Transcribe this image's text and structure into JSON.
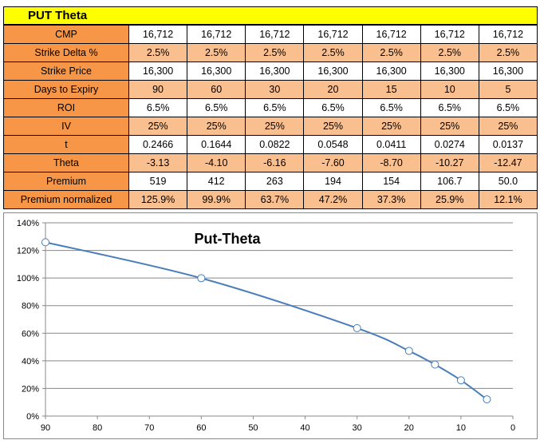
{
  "sheet": {
    "title": "PUT Theta",
    "rows": [
      {
        "label": "CMP",
        "values": [
          "16,712",
          "16,712",
          "16,712",
          "16,712",
          "16,712",
          "16,712",
          "16,712"
        ]
      },
      {
        "label": "Strike Delta %",
        "values": [
          "2.5%",
          "2.5%",
          "2.5%",
          "2.5%",
          "2.5%",
          "2.5%",
          "2.5%"
        ]
      },
      {
        "label": "Strike Price",
        "values": [
          "16,300",
          "16,300",
          "16,300",
          "16,300",
          "16,300",
          "16,300",
          "16,300"
        ]
      },
      {
        "label": "Days to Expiry",
        "values": [
          "90",
          "60",
          "30",
          "20",
          "15",
          "10",
          "5"
        ]
      },
      {
        "label": "ROI",
        "values": [
          "6.5%",
          "6.5%",
          "6.5%",
          "6.5%",
          "6.5%",
          "6.5%",
          "6.5%"
        ]
      },
      {
        "label": "IV",
        "values": [
          "25%",
          "25%",
          "25%",
          "25%",
          "25%",
          "25%",
          "25%"
        ]
      },
      {
        "label": "t",
        "values": [
          "0.2466",
          "0.1644",
          "0.0822",
          "0.0548",
          "0.0411",
          "0.0274",
          "0.0137"
        ]
      },
      {
        "label": "Theta",
        "values": [
          "-3.13",
          "-4.10",
          "-6.16",
          "-7.60",
          "-8.70",
          "-10.27",
          "-12.47"
        ]
      },
      {
        "label": "Premium",
        "values": [
          "519",
          "412",
          "263",
          "194",
          "154",
          "106.7",
          "50.0"
        ]
      },
      {
        "label": "Premium normalized",
        "values": [
          "125.9%",
          "99.9%",
          "63.7%",
          "47.2%",
          "37.3%",
          "25.9%",
          "12.1%"
        ]
      }
    ]
  },
  "chart_data": {
    "type": "line",
    "title": "Put-Theta",
    "xlabel": "",
    "ylabel": "",
    "x": [
      90,
      60,
      30,
      20,
      15,
      10,
      5
    ],
    "series": [
      {
        "values": [
          125.9,
          99.9,
          63.7,
          47.2,
          37.3,
          25.9,
          12.1
        ]
      }
    ],
    "xlim": [
      90,
      0
    ],
    "x_reversed": true,
    "xticks": [
      90,
      80,
      70,
      60,
      50,
      40,
      30,
      20,
      10,
      0
    ],
    "xtick_labels": [
      "90",
      "80",
      "70",
      "60",
      "50",
      "40",
      "30",
      "20",
      "10",
      "0"
    ],
    "ylim": [
      0,
      140
    ],
    "yticks": [
      0,
      20,
      40,
      60,
      80,
      100,
      120,
      140
    ],
    "ytick_labels": [
      "0%",
      "20%",
      "40%",
      "60%",
      "80%",
      "100%",
      "120%",
      "140%"
    ],
    "grid": "horizontal",
    "line_color": "#4a7ebb",
    "marker_fill": "#ffffff",
    "legend": "none"
  },
  "colors": {
    "title_bg": "#ffff00",
    "label_bg": "#f79646",
    "alt_row_bg": "#fabf8f"
  }
}
